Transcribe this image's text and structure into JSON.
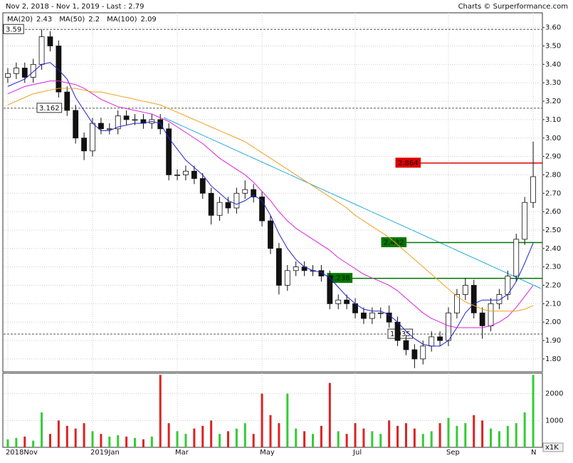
{
  "chart_data": {
    "type": "candlestick",
    "title": "Nov 2, 2018 - Nov 1, 2019 - Last : 2.79",
    "credit": "Charts © Surperformance.com",
    "categories": [
      "2018Nov",
      null,
      null,
      null,
      null,
      null,
      null,
      null,
      null,
      null,
      "2019Jan",
      null,
      null,
      null,
      null,
      null,
      null,
      null,
      null,
      null,
      "Mar",
      null,
      null,
      null,
      null,
      null,
      null,
      null,
      null,
      null,
      "May",
      null,
      null,
      null,
      null,
      null,
      null,
      null,
      null,
      null,
      null,
      "Jul",
      null,
      null,
      null,
      null,
      null,
      null,
      null,
      null,
      null,
      null,
      "Sep",
      null,
      null,
      null,
      null,
      null,
      null,
      null,
      null,
      null,
      "N"
    ],
    "open": [
      3.33,
      3.35,
      3.38,
      3.33,
      3.4,
      3.55,
      3.5,
      3.25,
      3.15,
      3.0,
      2.93,
      3.08,
      3.05,
      3.05,
      3.12,
      3.1,
      3.1,
      3.08,
      3.1,
      3.05,
      2.8,
      2.8,
      2.82,
      2.78,
      2.7,
      2.58,
      2.65,
      2.62,
      2.7,
      2.72,
      2.68,
      2.55,
      2.4,
      2.2,
      2.28,
      2.3,
      2.28,
      2.28,
      2.25,
      2.1,
      2.12,
      2.1,
      2.05,
      2.02,
      2.05,
      2.05,
      2.0,
      1.9,
      1.85,
      1.8,
      1.87,
      1.92,
      1.9,
      2.05,
      2.15,
      2.2,
      2.05,
      1.98,
      2.1,
      2.15,
      2.25,
      2.45,
      2.65
    ],
    "high": [
      3.38,
      3.41,
      3.41,
      3.43,
      3.59,
      3.58,
      3.53,
      3.28,
      3.18,
      3.03,
      3.11,
      3.11,
      3.08,
      3.15,
      3.15,
      3.13,
      3.13,
      3.13,
      3.13,
      3.08,
      2.83,
      2.85,
      2.85,
      2.81,
      2.73,
      2.68,
      2.68,
      2.73,
      2.77,
      2.75,
      2.71,
      2.58,
      2.43,
      2.31,
      2.33,
      2.33,
      2.31,
      2.31,
      2.28,
      2.15,
      2.15,
      2.13,
      2.08,
      2.08,
      2.08,
      2.09,
      2.03,
      1.93,
      1.88,
      1.9,
      1.95,
      1.95,
      2.08,
      2.18,
      2.24,
      2.23,
      2.08,
      2.13,
      2.18,
      2.28,
      2.48,
      2.68,
      2.98
    ],
    "low": [
      3.3,
      3.32,
      3.3,
      3.3,
      3.37,
      3.47,
      3.22,
      3.12,
      2.97,
      2.88,
      2.9,
      3.02,
      3.02,
      3.02,
      3.07,
      3.07,
      3.05,
      3.05,
      3.02,
      2.77,
      2.77,
      2.77,
      2.75,
      2.67,
      2.53,
      2.55,
      2.59,
      2.59,
      2.67,
      2.65,
      2.52,
      2.37,
      2.15,
      2.17,
      2.25,
      2.25,
      2.25,
      2.22,
      2.07,
      2.07,
      2.07,
      2.02,
      1.99,
      1.99,
      2.02,
      1.97,
      1.87,
      1.82,
      1.75,
      1.77,
      1.84,
      1.87,
      1.87,
      2.02,
      2.12,
      2.02,
      1.91,
      1.95,
      2.07,
      2.12,
      2.22,
      2.42,
      2.62
    ],
    "close": [
      3.35,
      3.38,
      3.33,
      3.4,
      3.55,
      3.5,
      3.25,
      3.15,
      3.0,
      2.93,
      3.08,
      3.05,
      3.05,
      3.12,
      3.1,
      3.1,
      3.08,
      3.1,
      3.05,
      2.8,
      2.8,
      2.82,
      2.78,
      2.7,
      2.58,
      2.65,
      2.62,
      2.7,
      2.72,
      2.68,
      2.55,
      2.4,
      2.2,
      2.28,
      2.3,
      2.28,
      2.28,
      2.25,
      2.1,
      2.12,
      2.1,
      2.05,
      2.02,
      2.05,
      2.05,
      2.0,
      1.9,
      1.85,
      1.8,
      1.87,
      1.92,
      1.9,
      2.05,
      2.15,
      2.2,
      2.05,
      1.98,
      2.1,
      2.15,
      2.25,
      2.45,
      2.65,
      2.79
    ],
    "up_color": "#ffffff",
    "down_color": "#111111",
    "series": [
      {
        "name": "MA(20)",
        "last": 2.43,
        "color": "#2222cc",
        "values": [
          3.28,
          3.3,
          3.32,
          3.36,
          3.4,
          3.41,
          3.37,
          3.32,
          3.22,
          3.15,
          3.08,
          3.04,
          3.04,
          3.06,
          3.07,
          3.08,
          3.08,
          3.09,
          3.08,
          3.0,
          2.94,
          2.88,
          2.84,
          2.8,
          2.74,
          2.7,
          2.66,
          2.64,
          2.66,
          2.69,
          2.66,
          2.58,
          2.48,
          2.4,
          2.34,
          2.3,
          2.28,
          2.27,
          2.24,
          2.19,
          2.14,
          2.1,
          2.07,
          2.06,
          2.06,
          2.04,
          2.0,
          1.95,
          1.91,
          1.88,
          1.87,
          1.87,
          1.9,
          1.97,
          2.05,
          2.1,
          2.12,
          2.12,
          2.12,
          2.15,
          2.22,
          2.32,
          2.43
        ]
      },
      {
        "name": "MA(50)",
        "last": 2.2,
        "color": "#dd22dd",
        "values": [
          3.24,
          3.26,
          3.28,
          3.29,
          3.3,
          3.31,
          3.31,
          3.3,
          3.29,
          3.27,
          3.24,
          3.21,
          3.19,
          3.17,
          3.16,
          3.15,
          3.14,
          3.13,
          3.11,
          3.09,
          3.06,
          3.03,
          3.0,
          2.97,
          2.93,
          2.89,
          2.86,
          2.83,
          2.8,
          2.76,
          2.71,
          2.66,
          2.6,
          2.55,
          2.51,
          2.48,
          2.45,
          2.42,
          2.39,
          2.35,
          2.32,
          2.29,
          2.26,
          2.24,
          2.22,
          2.2,
          2.17,
          2.13,
          2.09,
          2.05,
          2.02,
          2.0,
          1.98,
          1.97,
          1.97,
          1.97,
          1.97,
          1.98,
          2.0,
          2.03,
          2.08,
          2.14,
          2.2
        ]
      },
      {
        "name": "MA(100)",
        "last": 2.09,
        "color": "#f0a020",
        "values": [
          3.18,
          3.2,
          3.22,
          3.24,
          3.25,
          3.26,
          3.27,
          3.27,
          3.27,
          3.26,
          3.25,
          3.25,
          3.24,
          3.23,
          3.22,
          3.21,
          3.2,
          3.19,
          3.18,
          3.16,
          3.14,
          3.12,
          3.1,
          3.08,
          3.06,
          3.04,
          3.02,
          3.0,
          2.98,
          2.95,
          2.92,
          2.89,
          2.86,
          2.83,
          2.8,
          2.77,
          2.74,
          2.71,
          2.68,
          2.65,
          2.62,
          2.58,
          2.55,
          2.52,
          2.49,
          2.46,
          2.42,
          2.38,
          2.34,
          2.3,
          2.26,
          2.22,
          2.18,
          2.14,
          2.11,
          2.09,
          2.07,
          2.06,
          2.06,
          2.06,
          2.06,
          2.07,
          2.09
        ]
      }
    ],
    "levels": [
      {
        "value": 3.59,
        "color": "#555555",
        "dashed": true
      },
      {
        "value": 3.162,
        "color": "#555555",
        "dashed": true
      },
      {
        "value": 2.864,
        "color": "#dd0000",
        "dashed": false
      },
      {
        "value": 2.432,
        "color": "#007700",
        "dashed": false
      },
      {
        "value": 2.238,
        "color": "#007700",
        "dashed": false
      },
      {
        "value": 1.935,
        "color": "#555555",
        "dashed": true
      }
    ],
    "ylim": [
      1.73,
      3.68
    ],
    "yticks": [
      {
        "value": 1.8,
        "label": "1.80"
      },
      {
        "value": 1.9,
        "label": "1.90"
      },
      {
        "value": 2.0,
        "label": "2.00"
      },
      {
        "value": 2.1,
        "label": "2.10"
      },
      {
        "value": 2.2,
        "label": "2.20"
      },
      {
        "value": 2.3,
        "label": "2.30"
      },
      {
        "value": 2.4,
        "label": "2.40"
      },
      {
        "value": 2.5,
        "label": "2.50"
      },
      {
        "value": 2.6,
        "label": "2.60"
      },
      {
        "value": 2.7,
        "label": "2.70"
      },
      {
        "value": 2.8,
        "label": "2.80"
      },
      {
        "value": 2.9,
        "label": "2.90"
      },
      {
        "value": 3.0,
        "label": "3.00"
      },
      {
        "value": 3.1,
        "label": "3.10"
      },
      {
        "value": 3.2,
        "label": "3.20"
      },
      {
        "value": 3.3,
        "label": "3.30"
      },
      {
        "value": 3.4,
        "label": "3.40"
      },
      {
        "value": 3.5,
        "label": "3.50"
      },
      {
        "value": 3.6,
        "label": "3.60"
      }
    ],
    "grid": true,
    "volume": {
      "unit": "x1K",
      "up_color": "#33cc33",
      "down_color": "#dd2222",
      "ylim": [
        0,
        2760
      ],
      "yticks": [
        1000,
        2000
      ],
      "values": [
        300,
        350,
        400,
        250,
        1300,
        500,
        1000,
        800,
        700,
        900,
        600,
        500,
        400,
        450,
        400,
        350,
        300,
        400,
        2700,
        900,
        600,
        500,
        700,
        800,
        1000,
        500,
        600,
        700,
        900,
        500,
        2000,
        1200,
        900,
        2000,
        700,
        600,
        500,
        800,
        2400,
        600,
        500,
        900,
        700,
        600,
        500,
        1000,
        800,
        900,
        700,
        500,
        600,
        900,
        1100,
        800,
        900,
        1200,
        1000,
        700,
        600,
        800,
        900,
        1300,
        2700
      ]
    }
  }
}
